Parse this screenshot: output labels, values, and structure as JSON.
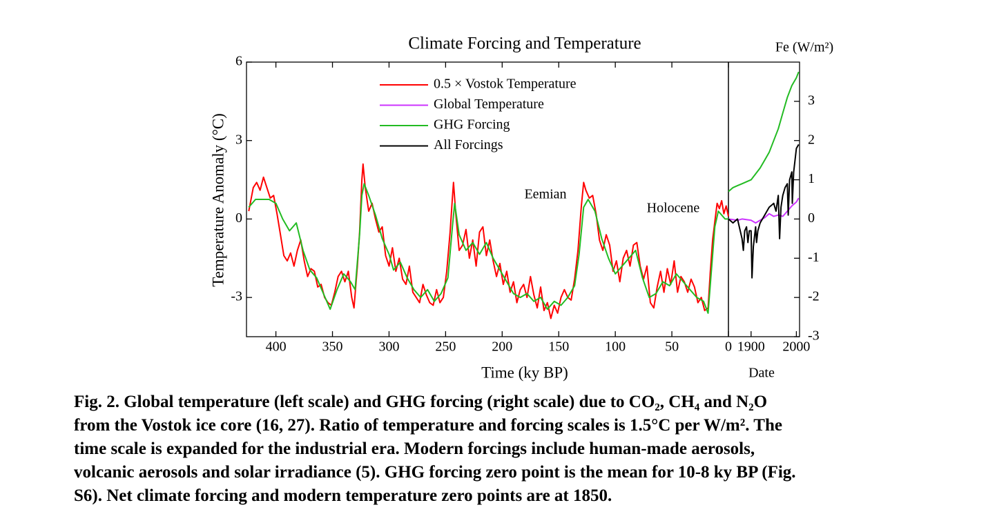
{
  "chart_data": {
    "type": "line",
    "title": "Climate Forcing and Temperature",
    "xlabel": "Time (ky BP)",
    "x2label": "Date",
    "ylabel": "Temperature Anomaly (°C)",
    "y2label": "Fe (W/m²)",
    "xlim": [
      426,
      0
    ],
    "xticks": [
      400,
      350,
      300,
      250,
      200,
      150,
      100,
      50,
      0
    ],
    "x2lim": [
      1850,
      2007
    ],
    "x2ticks": [
      1900,
      2000
    ],
    "ylim": [
      -4.5,
      6
    ],
    "yticks": [
      6,
      3,
      0,
      -3
    ],
    "y2lim": [
      -3,
      4
    ],
    "y2ticks": [
      3,
      2,
      1,
      0,
      -1,
      -2,
      -3
    ],
    "annotations": [
      {
        "text": "Eemian"
      },
      {
        "text": "Holocene"
      }
    ],
    "series": [
      {
        "name": "0.5 × Vostok Temperature",
        "color": "#ff0000",
        "axis": "y",
        "x": [
          424,
          420,
          417,
          414,
          411,
          408,
          405,
          402,
          399,
          396,
          393,
          390,
          387,
          384,
          381,
          378,
          375,
          372,
          369,
          366,
          363,
          360,
          357,
          354,
          351,
          348,
          345,
          342,
          339,
          336,
          333,
          331,
          328,
          326,
          324,
          323,
          321,
          318,
          315,
          312,
          309,
          306,
          303,
          300,
          297,
          294,
          291,
          288,
          285,
          282,
          279,
          276,
          273,
          270,
          267,
          264,
          261,
          258,
          255,
          252,
          249,
          246,
          244,
          243,
          241,
          238,
          235,
          232,
          229,
          226,
          223,
          220,
          217,
          214,
          211,
          208,
          205,
          202,
          199,
          196,
          193,
          190,
          187,
          184,
          181,
          178,
          175,
          172,
          169,
          166,
          163,
          160,
          157,
          154,
          151,
          148,
          145,
          142,
          139,
          136,
          133,
          130,
          128,
          126,
          123,
          120,
          117,
          114,
          111,
          108,
          105,
          102,
          99,
          96,
          93,
          90,
          87,
          84,
          81,
          78,
          75,
          72,
          69,
          66,
          63,
          60,
          57,
          54,
          51,
          48,
          45,
          42,
          39,
          36,
          33,
          30,
          27,
          24,
          21,
          18,
          16,
          14,
          12,
          10,
          8,
          6,
          4,
          2,
          0
        ],
        "values": [
          0.3,
          1.2,
          1.4,
          1.1,
          1.6,
          1.2,
          0.8,
          0.9,
          0.2,
          -0.6,
          -1.4,
          -1.6,
          -1.3,
          -1.8,
          -1.2,
          -0.8,
          -1.6,
          -2.2,
          -1.9,
          -2.0,
          -2.6,
          -2.5,
          -3.0,
          -3.2,
          -3.3,
          -2.8,
          -2.2,
          -2.0,
          -2.4,
          -2.0,
          -3.0,
          -3.4,
          -1.8,
          -0.5,
          1.5,
          2.1,
          1.2,
          0.3,
          0.6,
          0,
          -0.5,
          -0.3,
          -1.4,
          -1.8,
          -1.1,
          -2.0,
          -1.5,
          -2.3,
          -2.5,
          -1.8,
          -2.8,
          -3.0,
          -3.2,
          -2.5,
          -2.9,
          -3.2,
          -3.3,
          -2.7,
          -3.2,
          -3.0,
          -2.0,
          -0.5,
          0.8,
          1.4,
          0.2,
          -1.2,
          -1.0,
          -0.4,
          -1.5,
          -0.8,
          -1.8,
          -0.5,
          -0.3,
          -1.4,
          -0.8,
          -1.6,
          -2.2,
          -1.7,
          -2.5,
          -2.0,
          -2.8,
          -2.4,
          -3.2,
          -2.7,
          -2.5,
          -3.0,
          -2.2,
          -2.9,
          -3.4,
          -2.6,
          -3.5,
          -3.2,
          -3.8,
          -3.3,
          -3.6,
          -3.0,
          -2.7,
          -3.0,
          -3.1,
          -2.3,
          -1.2,
          0.5,
          1.4,
          1.1,
          0.8,
          0.9,
          0.2,
          -0.8,
          -1.2,
          -0.6,
          -1.0,
          -2.0,
          -1.6,
          -2.4,
          -1.5,
          -1.2,
          -1.8,
          -1.0,
          -0.9,
          -1.8,
          -2.3,
          -1.8,
          -3.2,
          -3.4,
          -2.6,
          -2.0,
          -2.8,
          -1.9,
          -2.5,
          -1.6,
          -2.8,
          -2.2,
          -2.4,
          -2.8,
          -2.3,
          -2.6,
          -3.2,
          -3.0,
          -3.5,
          -3.4,
          -2.0,
          -0.8,
          -0.1,
          0.6,
          0.4,
          0.7,
          0.2,
          0.5,
          0.1
        ]
      },
      {
        "name": "Global Temperature",
        "color": "#cc33ff",
        "axis": "y",
        "x2": [
          1850,
          1870,
          1880,
          1900,
          1910,
          1920,
          1930,
          1940,
          1950,
          1960,
          1970,
          1980,
          1990,
          2000,
          2005
        ],
        "values2": [
          0,
          -0.05,
          0,
          -0.05,
          -0.15,
          -0.05,
          0.05,
          0.2,
          0.1,
          0.15,
          0.1,
          0.3,
          0.5,
          0.65,
          0.8
        ]
      },
      {
        "name": "GHG Forcing",
        "color": "#22bb22",
        "axis": "y2",
        "x": [
          424,
          418,
          412,
          406,
          400,
          394,
          388,
          382,
          376,
          370,
          364,
          358,
          352,
          346,
          340,
          334,
          330,
          326,
          324,
          322,
          318,
          312,
          306,
          300,
          296,
          290,
          284,
          278,
          272,
          266,
          260,
          254,
          248,
          244,
          242,
          238,
          232,
          226,
          220,
          214,
          208,
          202,
          196,
          190,
          184,
          178,
          172,
          166,
          160,
          154,
          148,
          142,
          136,
          132,
          128,
          124,
          118,
          112,
          106,
          100,
          94,
          88,
          82,
          76,
          70,
          64,
          58,
          52,
          46,
          40,
          34,
          28,
          22,
          18,
          15,
          12,
          9,
          6,
          3,
          0
        ],
        "values": [
          0.3,
          0.5,
          0.5,
          0.5,
          0.4,
          0.0,
          -0.3,
          -0.1,
          -0.8,
          -1.3,
          -1.5,
          -1.9,
          -2.3,
          -1.8,
          -1.4,
          -1.6,
          -1.8,
          -0.4,
          0.6,
          0.9,
          0.6,
          0.1,
          -0.5,
          -0.9,
          -1.3,
          -1.1,
          -1.5,
          -1.8,
          -2.0,
          -1.8,
          -2.1,
          -1.9,
          -1.5,
          -0.2,
          0.4,
          -0.4,
          -0.8,
          -0.6,
          -0.9,
          -0.6,
          -1.0,
          -1.3,
          -1.6,
          -1.9,
          -2.0,
          -1.9,
          -2.1,
          -2.0,
          -2.3,
          -2.1,
          -2.2,
          -2.0,
          -1.7,
          -0.9,
          0.3,
          0.5,
          0.2,
          -0.5,
          -1.0,
          -1.4,
          -1.2,
          -1.0,
          -0.8,
          -1.5,
          -2.0,
          -1.9,
          -1.6,
          -1.7,
          -1.4,
          -1.6,
          -1.8,
          -2.0,
          -2.1,
          -2.4,
          -1.3,
          -0.2,
          0.2,
          0.1,
          0.0,
          0.0
        ],
        "x2": [
          1850,
          1860,
          1870,
          1880,
          1890,
          1900,
          1910,
          1920,
          1930,
          1940,
          1950,
          1960,
          1970,
          1980,
          1990,
          2000,
          2005
        ],
        "values2": [
          0.7,
          0.8,
          0.85,
          0.9,
          0.95,
          1.0,
          1.15,
          1.3,
          1.5,
          1.7,
          2.0,
          2.3,
          2.7,
          3.1,
          3.4,
          3.6,
          3.75
        ]
      },
      {
        "name": "All Forcings",
        "color": "#000000",
        "axis": "y2",
        "x2": [
          1850,
          1860,
          1870,
          1880,
          1883,
          1886,
          1890,
          1893,
          1896,
          1900,
          1902,
          1905,
          1910,
          1912,
          1915,
          1920,
          1930,
          1940,
          1950,
          1955,
          1960,
          1963,
          1966,
          1970,
          1975,
          1980,
          1982,
          1985,
          1990,
          1991,
          1994,
          2000,
          2005
        ],
        "values2": [
          0,
          -0.1,
          0.0,
          -0.5,
          -0.8,
          -0.3,
          -0.2,
          -0.6,
          -0.3,
          -0.3,
          -1.5,
          -0.7,
          -0.2,
          -0.6,
          -0.3,
          -0.1,
          0.1,
          0.3,
          0.4,
          0.2,
          0.6,
          -0.5,
          0.3,
          0.6,
          0.8,
          0.9,
          0.1,
          1.0,
          1.2,
          0.4,
          1.2,
          1.8,
          1.9
        ]
      }
    ],
    "caption": [
      "Fig. 2. Global temperature (left scale) and GHG forcing (right scale) due to CO₂, CH₄ and N₂O",
      "from the Vostok ice core (16, 27). Ratio of temperature and forcing scales is 1.5°C per W/m². The",
      "time scale is expanded for the industrial era. Modern forcings include human-made aerosols,",
      "volcanic aerosols and solar irradiance (5). GHG forcing zero point is the mean for 10-8 ky BP (Fig.",
      "S6). Net climate forcing and modern temperature zero points are at 1850."
    ]
  }
}
